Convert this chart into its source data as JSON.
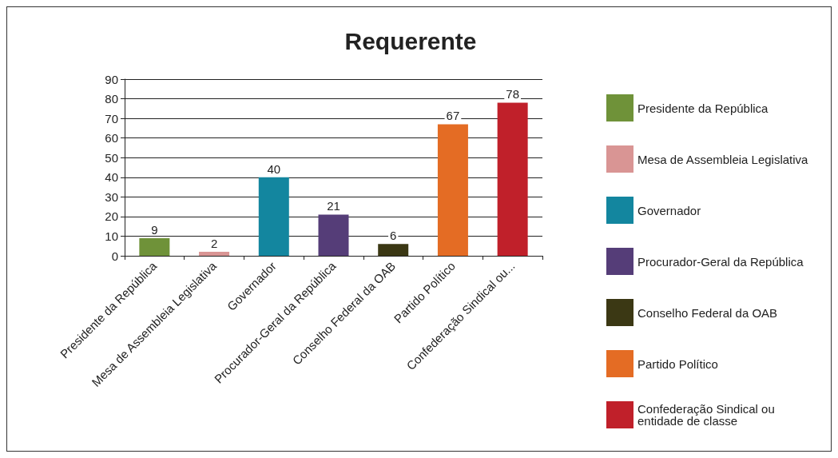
{
  "chart_data": {
    "type": "bar",
    "title": "Requerente",
    "categories": [
      "Presidente da República",
      "Mesa de Assembleia Legislativa",
      "Governador",
      "Procurador-Geral da República",
      "Conselho Federal da OAB",
      "Partido Político",
      "Confederação Sindical ou..."
    ],
    "series": [
      {
        "name": "Presidente da República",
        "color": "#6f9239",
        "values": [
          9,
          null,
          null,
          null,
          null,
          null,
          null
        ]
      },
      {
        "name": "Mesa de Assembleia Legislativa",
        "color": "#d99594",
        "values": [
          null,
          2,
          null,
          null,
          null,
          null,
          null
        ]
      },
      {
        "name": "Governador",
        "color": "#13869f",
        "values": [
          null,
          null,
          40,
          null,
          null,
          null,
          null
        ]
      },
      {
        "name": "Procurador-Geral da República",
        "color": "#553d78",
        "values": [
          null,
          null,
          null,
          21,
          null,
          null,
          null
        ]
      },
      {
        "name": "Conselho Federal da OAB",
        "color": "#3b3814",
        "values": [
          null,
          null,
          null,
          null,
          6,
          null,
          null
        ]
      },
      {
        "name": "Partido Político",
        "color": "#e46c24",
        "values": [
          null,
          null,
          null,
          null,
          null,
          67,
          null
        ]
      },
      {
        "name": "Confederação Sindical ou entidade de classe",
        "color": "#c0202a",
        "values": [
          null,
          null,
          null,
          null,
          null,
          null,
          78
        ]
      }
    ],
    "ylim": [
      0,
      90
    ],
    "yticks": [
      0,
      10,
      20,
      30,
      40,
      50,
      60,
      70,
      80,
      90
    ],
    "grid": "y",
    "legend": "right",
    "data_labels": true
  }
}
